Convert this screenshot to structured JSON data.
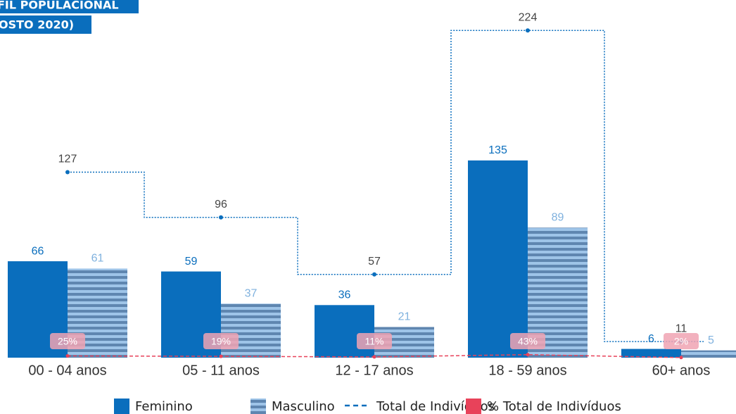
{
  "chart_data": {
    "type": "bar",
    "title_lines": [
      "FIL POPULACIONAL",
      "OSTO 2020)"
    ],
    "categories": [
      "00 - 04 anos",
      "05 - 11 anos",
      "12 - 17 anos",
      "18 - 59 anos",
      "60+ anos"
    ],
    "series": [
      {
        "name": "Feminino",
        "color": "#0a6ebd",
        "values": [
          66,
          59,
          36,
          135,
          6
        ]
      },
      {
        "name": "Masculino",
        "color": "#7fb1de",
        "values": [
          61,
          37,
          21,
          89,
          5
        ]
      },
      {
        "name": "Total de Indivíduos",
        "color": "#0a6ebd",
        "type": "line",
        "values": [
          127,
          96,
          57,
          224,
          11
        ]
      },
      {
        "name": "% Total de Indivíduos",
        "color": "#e8425a",
        "type": "line",
        "axis": "y2",
        "values": [
          25,
          19,
          11,
          43,
          2
        ],
        "value_labels": [
          "25%",
          "19%",
          "11%",
          "43%",
          "2%"
        ]
      }
    ],
    "ylim": [
      0,
      240
    ],
    "y2lim": [
      0,
      5000
    ],
    "legend": "bottom"
  }
}
